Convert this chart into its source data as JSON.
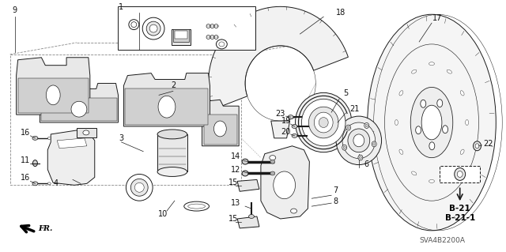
{
  "background_color": "#ffffff",
  "diagram_code": "SVA4B2200A",
  "ref_b21": "B-21",
  "ref_b211": "B-21-1",
  "fr_label": "FR.",
  "figsize": [
    6.4,
    3.19
  ],
  "dpi": 100,
  "lc": "#1a1a1a",
  "lw": 0.7
}
